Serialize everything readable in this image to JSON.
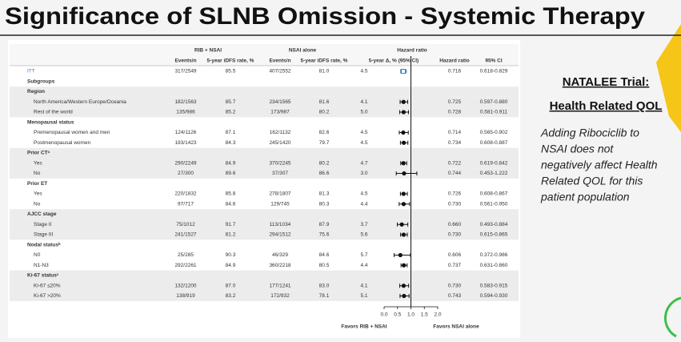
{
  "header": {
    "title": "Significance of SLNB Omission - Systemic Therapy"
  },
  "table": {
    "group_headers": [
      "RIB + NSAI",
      "NSAI alone",
      "Hazard ratio"
    ],
    "columns": [
      "Events/n",
      "5-year iDFS rate, %",
      "Events/n",
      "5-year iDFS rate, %",
      "5-year Δ, % (95% CI)",
      "Hazard ratio",
      "95% CI"
    ],
    "rows": [
      {
        "label": "ITT",
        "kind": "itt",
        "cells": [
          "317/2549",
          "85.5",
          "407/2552",
          "81.0",
          "4.5"
        ],
        "hr": "0.716",
        "ci": "0.618-0.829"
      },
      {
        "label": "Subgroups",
        "kind": "group"
      },
      {
        "label": "Region",
        "kind": "group"
      },
      {
        "label": "North America/Western Europe/Oceania",
        "kind": "item",
        "cells": [
          "182/1563",
          "85.7",
          "234/1565",
          "81.6",
          "4.1"
        ],
        "hr": "0.725",
        "ci": "0.597-0.880"
      },
      {
        "label": "Rest of the world",
        "kind": "item",
        "cells": [
          "135/986",
          "85.2",
          "173/987",
          "80.2",
          "5.0"
        ],
        "hr": "0.728",
        "ci": "0.581-0.911"
      },
      {
        "label": "Menopausal status",
        "kind": "group"
      },
      {
        "label": "Premenopausal women and men",
        "kind": "item",
        "cells": [
          "124/1126",
          "87.1",
          "162/1132",
          "82.6",
          "4.5"
        ],
        "hr": "0.714",
        "ci": "0.565-0.902"
      },
      {
        "label": "Postmenopausal women",
        "kind": "item",
        "cells": [
          "193/1423",
          "84.3",
          "245/1420",
          "79.7",
          "4.5"
        ],
        "hr": "0.734",
        "ci": "0.608-0.887"
      },
      {
        "label": "Prior CTᵃ",
        "kind": "group"
      },
      {
        "label": "Yes",
        "kind": "item",
        "cells": [
          "290/2249",
          "84.9",
          "370/2245",
          "80.2",
          "4.7"
        ],
        "hr": "0.722",
        "ci": "0.619-0.842"
      },
      {
        "label": "No",
        "kind": "item",
        "cells": [
          "27/300",
          "89.6",
          "37/307",
          "86.6",
          "3.0"
        ],
        "hr": "0.744",
        "ci": "0.453-1.222"
      },
      {
        "label": "Prior ET",
        "kind": "group"
      },
      {
        "label": "Yes",
        "kind": "item",
        "cells": [
          "220/1832",
          "85.8",
          "278/1807",
          "81.3",
          "4.5"
        ],
        "hr": "0.726",
        "ci": "0.608-0.867"
      },
      {
        "label": "No",
        "kind": "item",
        "cells": [
          "97/717",
          "84.6",
          "129/745",
          "80.3",
          "4.4"
        ],
        "hr": "0.730",
        "ci": "0.561-0.950"
      },
      {
        "label": "AJCC stage",
        "kind": "group"
      },
      {
        "label": "Stage II",
        "kind": "item",
        "cells": [
          "75/1012",
          "91.7",
          "113/1034",
          "87.9",
          "3.7"
        ],
        "hr": "0.660",
        "ci": "0.493-0.884"
      },
      {
        "label": "Stage III",
        "kind": "item",
        "cells": [
          "241/1527",
          "81.2",
          "294/1512",
          "75.6",
          "5.6"
        ],
        "hr": "0.730",
        "ci": "0.615-0.865"
      },
      {
        "label": "Nodal statusᵇ",
        "kind": "group"
      },
      {
        "label": "N0",
        "kind": "item",
        "cells": [
          "25/285",
          "90.3",
          "46/329",
          "84.6",
          "5.7"
        ],
        "hr": "0.606",
        "ci": "0.372-0.986"
      },
      {
        "label": "N1-N3",
        "kind": "item",
        "cells": [
          "292/2261",
          "84.9",
          "360/2218",
          "80.5",
          "4.4"
        ],
        "hr": "0.737",
        "ci": "0.631-0.860"
      },
      {
        "label": "Ki-67 statusᶜ",
        "kind": "group"
      },
      {
        "label": "Ki-67 ≤20%",
        "kind": "item",
        "cells": [
          "132/1200",
          "87.0",
          "177/1241",
          "83.0",
          "4.1"
        ],
        "hr": "0.730",
        "ci": "0.583-0.915"
      },
      {
        "label": "Ki-67 >20%",
        "kind": "item",
        "cells": [
          "138/919",
          "83.2",
          "172/932",
          "78.1",
          "5.1"
        ],
        "hr": "0.743",
        "ci": "0.594-0.930"
      }
    ],
    "axis_ticks": [
      "0.0",
      "0.5",
      "1.0",
      "1.5",
      "2.0"
    ],
    "favors_left": "Favors RIB + NSAI",
    "favors_right": "Favors NSAI alone"
  },
  "panel": {
    "heading": [
      "NATALEE Trial:",
      "Health Related QOL"
    ],
    "lines": [
      "Adding Ribociclib to",
      "NSAI does not",
      "negatively affect Health",
      "Related QOL for this",
      "patient population"
    ]
  }
}
